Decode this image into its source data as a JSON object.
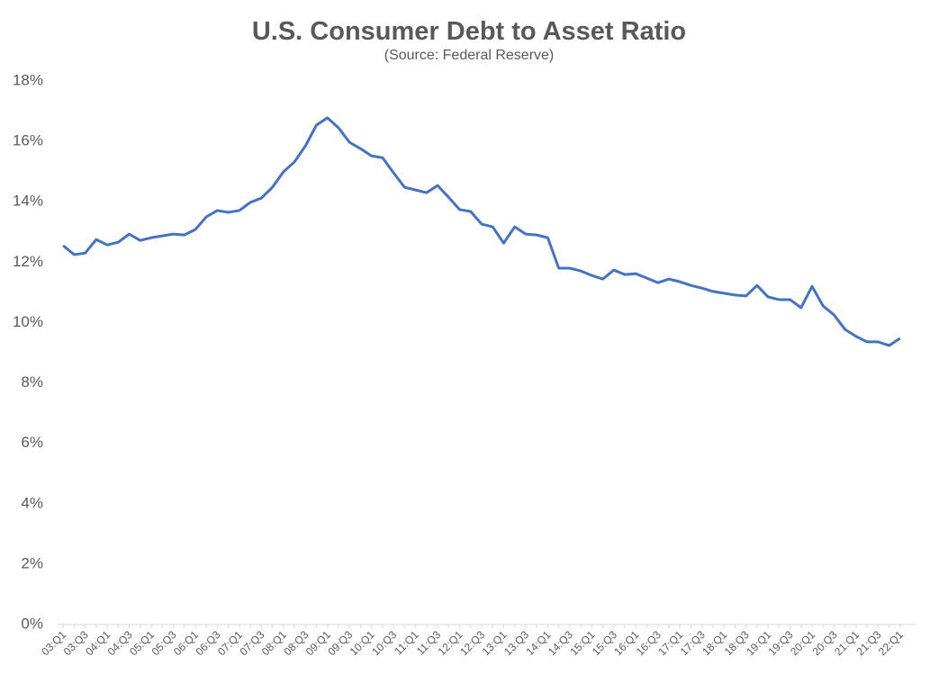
{
  "chart_data": {
    "type": "line",
    "title": "U.S. Consumer Debt to Asset Ratio",
    "subtitle": "(Source: Federal Reserve)",
    "categories": [
      "03:Q1",
      null,
      "03:Q3",
      null,
      "04:Q1",
      null,
      "04:Q3",
      null,
      "05:Q1",
      null,
      "05:Q3",
      null,
      "06:Q1",
      null,
      "06:Q3",
      null,
      "07:Q1",
      null,
      "07:Q3",
      null,
      "08:Q1",
      null,
      "08:Q3",
      null,
      "09:Q1",
      null,
      "09:Q3",
      null,
      "10:Q1",
      null,
      "10:Q3",
      null,
      "11:Q1",
      null,
      "11:Q3",
      null,
      "12:Q1",
      null,
      "12:Q3",
      null,
      "13:Q1",
      null,
      "13:Q3",
      null,
      "14:Q1",
      null,
      "14:Q3",
      null,
      "15:Q1",
      null,
      "15:Q3",
      null,
      "16:Q1",
      null,
      "16:Q3",
      null,
      "17:Q1",
      null,
      "17:Q3",
      null,
      "18:Q1",
      null,
      "18:Q3",
      null,
      "19:Q1",
      null,
      "19:Q3",
      null,
      "20:Q1",
      null,
      "20:Q3",
      null,
      "21:Q1",
      null,
      "21:Q3",
      null,
      "22:Q1"
    ],
    "values": [
      12.55,
      12.25,
      12.3,
      12.75,
      12.57,
      12.66,
      12.93,
      12.72,
      12.81,
      12.87,
      12.93,
      12.9,
      13.08,
      13.5,
      13.71,
      13.65,
      13.71,
      13.98,
      14.12,
      14.48,
      14.99,
      15.32,
      15.85,
      16.54,
      16.78,
      16.45,
      15.97,
      15.76,
      15.52,
      15.46,
      14.96,
      14.48,
      14.39,
      14.3,
      14.54,
      14.15,
      13.74,
      13.68,
      13.26,
      13.17,
      12.63,
      13.17,
      12.93,
      12.9,
      12.81,
      11.8,
      11.8,
      11.71,
      11.56,
      11.44,
      11.74,
      11.59,
      11.62,
      11.47,
      11.32,
      11.44,
      11.35,
      11.23,
      11.14,
      11.03,
      10.97,
      10.91,
      10.88,
      11.23,
      10.85,
      10.76,
      10.76,
      10.49,
      11.2,
      10.55,
      10.25,
      9.77,
      9.54,
      9.36,
      9.36,
      9.24,
      9.48
    ],
    "color": "#4472c4",
    "ylim": [
      0,
      18
    ],
    "yticks": [
      {
        "value": 0,
        "label": "0%"
      },
      {
        "value": 2,
        "label": "2%"
      },
      {
        "value": 4,
        "label": "4%"
      },
      {
        "value": 6,
        "label": "6%"
      },
      {
        "value": 8,
        "label": "8%"
      },
      {
        "value": 10,
        "label": "10%"
      },
      {
        "value": 12,
        "label": "12%"
      },
      {
        "value": 14,
        "label": "14%"
      },
      {
        "value": 16,
        "label": "16%"
      },
      {
        "value": 18,
        "label": "18%"
      }
    ],
    "grid": false
  }
}
